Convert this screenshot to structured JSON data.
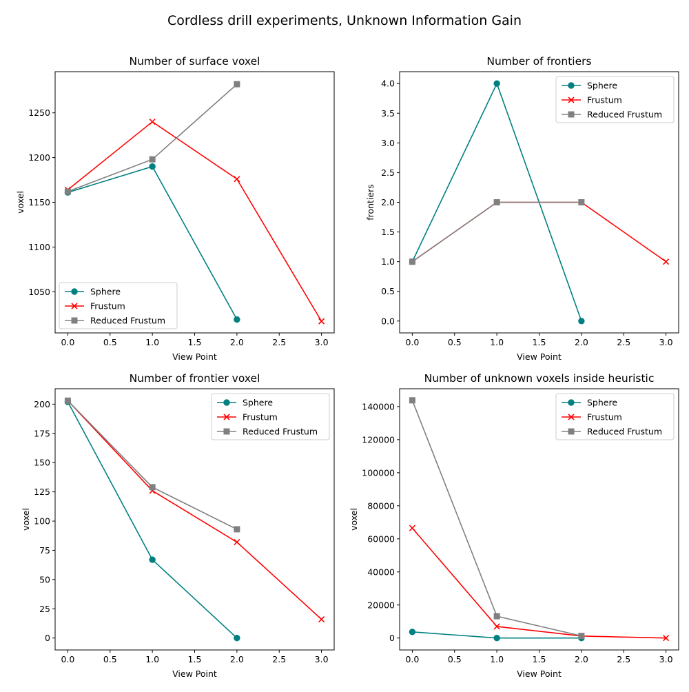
{
  "figure": {
    "title": "Cordless drill experiments, Unknown Information Gain"
  },
  "series_styles": [
    {
      "name": "Sphere",
      "color": "#008080",
      "marker": "circle"
    },
    {
      "name": "Frustum",
      "color": "#ff0000",
      "marker": "x"
    },
    {
      "name": "Reduced Frustum",
      "color": "#808080",
      "marker": "square"
    }
  ],
  "chart_data": [
    {
      "type": "line",
      "title": "Number of surface voxel",
      "xlabel": "View Point",
      "ylabel": "voxel",
      "xlim": [
        -0.15,
        3.15
      ],
      "ylim": [
        1004,
        1296
      ],
      "xticks": [
        0.0,
        0.5,
        1.0,
        1.5,
        2.0,
        2.5,
        3.0
      ],
      "yticks": [
        1050,
        1100,
        1150,
        1200,
        1250
      ],
      "x_decimals": 1,
      "y_decimals": 0,
      "legend": "lower-left",
      "series": [
        {
          "name": "Sphere",
          "x": [
            0,
            1,
            2
          ],
          "y": [
            1161,
            1190,
            1019
          ]
        },
        {
          "name": "Frustum",
          "x": [
            0,
            1,
            2,
            3
          ],
          "y": [
            1164,
            1240,
            1176,
            1017
          ]
        },
        {
          "name": "Reduced Frustum",
          "x": [
            0,
            1,
            2
          ],
          "y": [
            1162,
            1198,
            1282
          ]
        }
      ]
    },
    {
      "type": "line",
      "title": "Number of frontiers",
      "xlabel": "View Point",
      "ylabel": "frontiers",
      "xlim": [
        -0.15,
        3.15
      ],
      "ylim": [
        -0.2,
        4.2
      ],
      "xticks": [
        0.0,
        0.5,
        1.0,
        1.5,
        2.0,
        2.5,
        3.0
      ],
      "yticks": [
        0.0,
        0.5,
        1.0,
        1.5,
        2.0,
        2.5,
        3.0,
        3.5,
        4.0
      ],
      "x_decimals": 1,
      "y_decimals": 1,
      "legend": "upper-right",
      "series": [
        {
          "name": "Sphere",
          "x": [
            0,
            1,
            2
          ],
          "y": [
            1,
            4,
            0
          ]
        },
        {
          "name": "Frustum",
          "x": [
            0,
            1,
            2,
            3
          ],
          "y": [
            1,
            2,
            2,
            1
          ]
        },
        {
          "name": "Reduced Frustum",
          "x": [
            0,
            1,
            2
          ],
          "y": [
            1,
            2,
            2
          ]
        }
      ]
    },
    {
      "type": "line",
      "title": "Number of frontier voxel",
      "xlabel": "View Point",
      "ylabel": "voxel",
      "xlim": [
        -0.15,
        3.15
      ],
      "ylim": [
        -10.2,
        213.2
      ],
      "xticks": [
        0.0,
        0.5,
        1.0,
        1.5,
        2.0,
        2.5,
        3.0
      ],
      "yticks": [
        0,
        25,
        50,
        75,
        100,
        125,
        150,
        175,
        200
      ],
      "x_decimals": 1,
      "y_decimals": 0,
      "legend": "upper-right",
      "series": [
        {
          "name": "Sphere",
          "x": [
            0,
            1,
            2
          ],
          "y": [
            202,
            67,
            0
          ]
        },
        {
          "name": "Frustum",
          "x": [
            0,
            1,
            2,
            3
          ],
          "y": [
            203,
            126,
            82,
            16
          ]
        },
        {
          "name": "Reduced Frustum",
          "x": [
            0,
            1,
            2
          ],
          "y": [
            203,
            129,
            93
          ]
        }
      ]
    },
    {
      "type": "line",
      "title": "Number of unknown voxels inside heuristic",
      "xlabel": "View Point",
      "ylabel": "voxel",
      "xlim": [
        -0.15,
        3.15
      ],
      "ylim": [
        -7200,
        150800
      ],
      "xticks": [
        0.0,
        0.5,
        1.0,
        1.5,
        2.0,
        2.5,
        3.0
      ],
      "yticks": [
        0,
        20000,
        40000,
        60000,
        80000,
        100000,
        120000,
        140000
      ],
      "x_decimals": 1,
      "y_decimals": 0,
      "legend": "upper-right",
      "series": [
        {
          "name": "Sphere",
          "x": [
            0,
            1,
            2
          ],
          "y": [
            3700,
            0,
            0
          ]
        },
        {
          "name": "Frustum",
          "x": [
            0,
            1,
            2,
            3
          ],
          "y": [
            66500,
            7000,
            1200,
            0
          ]
        },
        {
          "name": "Reduced Frustum",
          "x": [
            0,
            1,
            2
          ],
          "y": [
            143800,
            13200,
            1300
          ]
        }
      ]
    }
  ]
}
